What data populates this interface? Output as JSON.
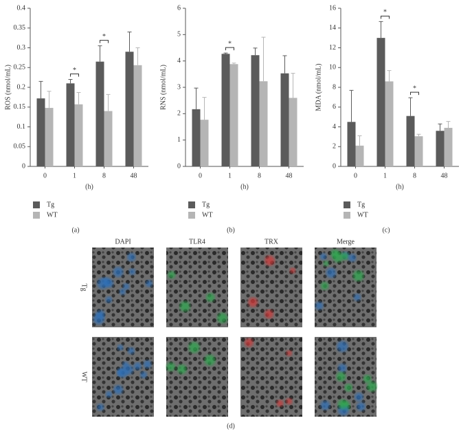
{
  "chart_data": [
    {
      "type": "bar",
      "y_label": "ROS (nmol/mL)",
      "x_label": "(h)",
      "panel_label": "(a)",
      "categories": [
        "0",
        "1",
        "8",
        "48"
      ],
      "series": [
        {
          "name": "Tg",
          "color": "#5b5b5b",
          "values": [
            0.172,
            0.21,
            0.265,
            0.29
          ],
          "errors": [
            0.043,
            0.01,
            0.04,
            0.05
          ]
        },
        {
          "name": "WT",
          "color": "#b5b5b5",
          "values": [
            0.148,
            0.157,
            0.14,
            0.256
          ],
          "errors": [
            0.042,
            0.03,
            0.042,
            0.044
          ]
        }
      ],
      "ylim": [
        0,
        0.4
      ],
      "yticks": [
        0,
        0.05,
        0.1,
        0.15,
        0.2,
        0.25,
        0.3,
        0.35,
        0.4
      ],
      "grid": false,
      "significance": [
        {
          "category": "1",
          "label": "*"
        },
        {
          "category": "8",
          "label": "*"
        }
      ]
    },
    {
      "type": "bar",
      "y_label": "RNS (nmol/mL)",
      "x_label": "(h)",
      "panel_label": "(b)",
      "categories": [
        "0",
        "1",
        "8",
        "48"
      ],
      "series": [
        {
          "name": "Tg",
          "color": "#5b5b5b",
          "values": [
            2.17,
            4.27,
            4.22,
            3.53
          ],
          "errors": [
            0.8,
            0.03,
            0.27,
            0.67
          ]
        },
        {
          "name": "WT",
          "color": "#b5b5b5",
          "values": [
            1.77,
            3.88,
            3.23,
            2.6
          ],
          "errors": [
            0.85,
            0.04,
            1.67,
            0.93
          ]
        }
      ],
      "ylim": [
        0,
        6
      ],
      "yticks": [
        0,
        1,
        2,
        3,
        4,
        5,
        6
      ],
      "grid": false,
      "significance": [
        {
          "category": "1",
          "label": "*"
        }
      ]
    },
    {
      "type": "bar",
      "y_label": "MDA (nmol/mL)",
      "x_label": "(h)",
      "panel_label": "(c)",
      "categories": [
        "0",
        "1",
        "8",
        "48"
      ],
      "series": [
        {
          "name": "Tg",
          "color": "#5b5b5b",
          "values": [
            4.5,
            13,
            5.1,
            3.6
          ],
          "errors": [
            3.2,
            1.65,
            1.85,
            0.7
          ]
        },
        {
          "name": "WT",
          "color": "#b5b5b5",
          "values": [
            2.1,
            8.6,
            3.05,
            3.9
          ],
          "errors": [
            1,
            1.1,
            0.2,
            0.65
          ]
        }
      ],
      "ylim": [
        0,
        16
      ],
      "yticks": [
        0,
        2,
        4,
        6,
        8,
        10,
        12,
        14,
        16
      ],
      "grid": false,
      "significance": [
        {
          "category": "1",
          "label": "*"
        },
        {
          "category": "8",
          "label": "*"
        }
      ]
    }
  ],
  "image_panel": {
    "columns": [
      {
        "label": "DAPI",
        "color": "#2e6fb7"
      },
      {
        "label": "TLR4",
        "color": "#2fa84f"
      },
      {
        "label": "TRX",
        "color": "#d23a3a"
      },
      {
        "label": "Merge",
        "color": "#333333"
      }
    ],
    "rows": [
      "Tg",
      "WT"
    ],
    "label": "(d)"
  }
}
